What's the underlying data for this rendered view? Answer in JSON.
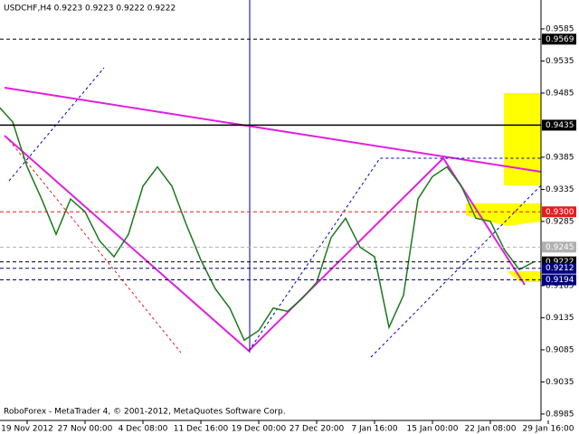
{
  "chart_data": {
    "type": "line",
    "title": "USDCHF,H4  0.9223 0.9223 0.9222 0.9222",
    "footer": "RoboForex - MetaTrader 4, © 2001-2012, MetaQuotes Software Corp.",
    "categories": [
      null,
      null,
      "19 Nov 2012",
      null,
      null,
      null,
      "27 Nov 00:00",
      null,
      null,
      null,
      "4 Dec 08:00",
      null,
      null,
      null,
      "11 Dec 16:00",
      null,
      null,
      null,
      "19 Dec 00:00",
      null,
      null,
      null,
      "27 Dec 20:00",
      null,
      null,
      null,
      "7 Jan 16:00",
      null,
      null,
      null,
      "15 Jan 00:00",
      null,
      null,
      null,
      "22 Jan 08:00",
      null,
      null,
      null,
      "29 Jan 16:00"
    ],
    "values": [
      0.9465,
      0.944,
      0.937,
      0.932,
      0.9265,
      0.932,
      0.93,
      0.9255,
      0.923,
      0.9265,
      0.934,
      0.937,
      0.934,
      0.928,
      0.9225,
      0.918,
      0.915,
      0.91,
      0.9115,
      0.915,
      0.9145,
      0.9165,
      0.919,
      0.926,
      0.929,
      0.9245,
      0.923,
      0.912,
      0.917,
      0.932,
      0.9355,
      0.937,
      0.934,
      0.929,
      0.9285,
      0.924,
      0.921,
      0.9222,
      null
    ],
    "color": "#1a7a1a",
    "ylim": [
      0.8975,
      0.963
    ],
    "yticks": [
      0.9585,
      0.9535,
      0.9485,
      0.9385,
      0.9335,
      0.9285,
      0.9185,
      0.9135,
      0.9085,
      0.9035,
      0.8985
    ],
    "levels": [
      {
        "value": 0.9569,
        "color": "#000000"
      },
      {
        "value": 0.9435,
        "color": "#000000"
      },
      {
        "value": {
          "value": 0.93,
          "label": "0.9300"
        },
        "color": "#e02020"
      },
      {
        "value": 0.9245,
        "color": "#b0b0b0"
      },
      {
        "value": 0.9222,
        "color": "#000000"
      },
      {
        "value": 0.9212,
        "color": "#000080"
      },
      {
        "value": 0.9194,
        "color": "#000080"
      }
    ]
  }
}
